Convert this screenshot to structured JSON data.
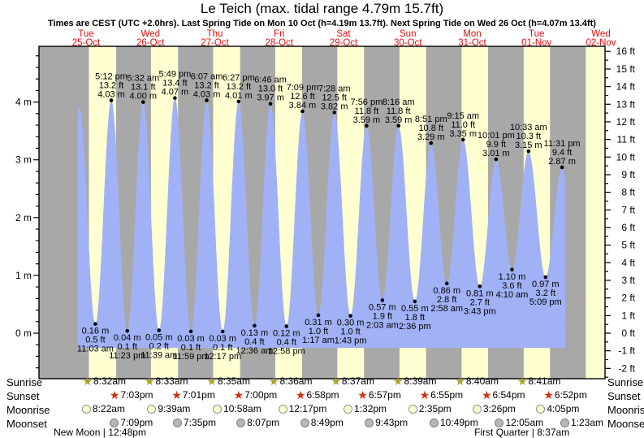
{
  "title": "Le Teich (max. tidal range 4.79m 15.7ft)",
  "subtitle": "Times are CEST (UTC +2.0hrs). Last Spring Tide on Mon 10 Oct (h=4.19m 13.7ft). Next Spring Tide on Wed 26 Oct (h=4.07m 13.4ft)",
  "colors": {
    "night_band": "#a8a8a8",
    "day_band": "#ffffd2",
    "tide_fill": "#a0b1f6",
    "day_label_red": "#dd1111",
    "sunrise_star": "#a8a022",
    "sunset_star": "#d03010",
    "moonrise_fill": "#ffffd2",
    "moonrise_stroke": "#909090",
    "moonset_fill": "#b8b8b0",
    "moonset_stroke": "#808080"
  },
  "days": [
    {
      "dow": "Tue",
      "date": "25-Oct",
      "sunrise_t": 8.533,
      "sunset_t": 19.05
    },
    {
      "dow": "Wed",
      "date": "26-Oct",
      "sunrise_t": 32.55,
      "sunset_t": 43.017
    },
    {
      "dow": "Thu",
      "date": "27-Oct",
      "sunrise_t": 56.583,
      "sunset_t": 67.0
    },
    {
      "dow": "Fri",
      "date": "28-Oct",
      "sunrise_t": 80.6,
      "sunset_t": 90.967
    },
    {
      "dow": "Sat",
      "date": "29-Oct",
      "sunrise_t": 104.617,
      "sunset_t": 114.95
    },
    {
      "dow": "Sun",
      "date": "30-Oct",
      "sunrise_t": 128.65,
      "sunset_t": 138.917
    },
    {
      "dow": "Mon",
      "date": "31-Oct",
      "sunrise_t": 152.667,
      "sunset_t": 162.9
    },
    {
      "dow": "Tue",
      "date": "01-Nov",
      "sunrise_t": 176.683,
      "sunset_t": 186.867
    },
    {
      "dow": "Wed",
      "date": "02-Nov",
      "sunrise_t": 200.72,
      "sunset_t": 210.85
    }
  ],
  "chart_data": {
    "type": "area",
    "title": "Tide height curve",
    "left_axis": {
      "unit": "m",
      "ticks": [
        0,
        1,
        2,
        3,
        4
      ],
      "range": [
        -0.79,
        4.96
      ]
    },
    "right_axis": {
      "unit": "ft",
      "ticks": [
        -2,
        -1,
        0,
        1,
        2,
        3,
        4,
        5,
        6,
        7,
        8,
        9,
        10,
        11,
        12,
        13,
        14,
        15,
        16
      ]
    },
    "time_axis_hours": {
      "curve_start": 4.2,
      "curve_end": 192.8
    },
    "extremes": [
      {
        "kind": "low",
        "t": -1.3,
        "m": 0.16,
        "labeled": false
      },
      {
        "kind": "high",
        "t": 4.83,
        "m": 3.9,
        "labeled": false
      },
      {
        "kind": "low",
        "t": 11.05,
        "m": 0.16,
        "labeled": true,
        "m_label": "0.16 m",
        "ft_label": "0.5 ft",
        "time": "11:03 am"
      },
      {
        "kind": "high",
        "t": 17.2,
        "m": 4.03,
        "labeled": true,
        "m_label": "4.03 m",
        "ft_label": "13.2 ft",
        "time": "5:12 pm"
      },
      {
        "kind": "low",
        "t": 23.383,
        "m": 0.04,
        "labeled": true,
        "m_label": "0.04 m",
        "ft_label": "0.1 ft",
        "time": "11:23 pm"
      },
      {
        "kind": "high",
        "t": 29.533,
        "m": 4.0,
        "labeled": true,
        "m_label": "4.00 m",
        "ft_label": "13.1 ft",
        "time": "5:32 am"
      },
      {
        "kind": "low",
        "t": 35.65,
        "m": 0.05,
        "labeled": true,
        "m_label": "0.05 m",
        "ft_label": "0.2 ft",
        "time": "11:39 am"
      },
      {
        "kind": "high",
        "t": 41.817,
        "m": 4.07,
        "labeled": true,
        "m_label": "4.07 m",
        "ft_label": "13.4 ft",
        "time": "5:49 pm"
      },
      {
        "kind": "low",
        "t": 47.983,
        "m": 0.03,
        "labeled": true,
        "m_label": "0.03 m",
        "ft_label": "0.1 ft",
        "time": "11:59 pm"
      },
      {
        "kind": "high",
        "t": 54.117,
        "m": 4.03,
        "labeled": true,
        "m_label": "4.03 m",
        "ft_label": "13.2 ft",
        "time": "6:07 am"
      },
      {
        "kind": "low",
        "t": 60.283,
        "m": 0.03,
        "labeled": true,
        "m_label": "0.03 m",
        "ft_label": "0.1 ft",
        "time": "12:17 pm"
      },
      {
        "kind": "high",
        "t": 66.45,
        "m": 4.01,
        "labeled": true,
        "m_label": "4.01 m",
        "ft_label": "13.2 ft",
        "time": "6:27 pm"
      },
      {
        "kind": "low",
        "t": 72.6,
        "m": 0.13,
        "labeled": true,
        "m_label": "0.13 m",
        "ft_label": "0.4 ft",
        "time": "12:36 am"
      },
      {
        "kind": "high",
        "t": 78.767,
        "m": 3.97,
        "labeled": true,
        "m_label": "3.97 m",
        "ft_label": "13.0 ft",
        "time": "6:46 am"
      },
      {
        "kind": "low",
        "t": 84.967,
        "m": 0.12,
        "labeled": true,
        "m_label": "0.12 m",
        "ft_label": "0.4 ft",
        "time": "12:58 pm"
      },
      {
        "kind": "high",
        "t": 91.15,
        "m": 3.84,
        "labeled": true,
        "m_label": "3.84 m",
        "ft_label": "12.6 ft",
        "time": "7:09 pm"
      },
      {
        "kind": "low",
        "t": 97.283,
        "m": 0.31,
        "labeled": true,
        "m_label": "0.31 m",
        "ft_label": "1.0 ft",
        "time": "1:17 am"
      },
      {
        "kind": "high",
        "t": 103.467,
        "m": 3.82,
        "labeled": true,
        "m_label": "3.82 m",
        "ft_label": "12.5 ft",
        "time": "7:28 am"
      },
      {
        "kind": "low",
        "t": 109.717,
        "m": 0.3,
        "labeled": true,
        "m_label": "0.30 m",
        "ft_label": "1.0 ft",
        "time": "1:43 pm"
      },
      {
        "kind": "high",
        "t": 115.933,
        "m": 3.59,
        "labeled": true,
        "m_label": "3.59 m",
        "ft_label": "11.8 ft",
        "time": "7:56 pm"
      },
      {
        "kind": "low",
        "t": 122.05,
        "m": 0.57,
        "labeled": true,
        "m_label": "0.57 m",
        "ft_label": "1.9 ft",
        "time": "2:03 am"
      },
      {
        "kind": "high",
        "t": 128.267,
        "m": 3.59,
        "labeled": true,
        "m_label": "3.59 m",
        "ft_label": "11.8 ft",
        "time": "8:16 am"
      },
      {
        "kind": "low",
        "t": 134.6,
        "m": 0.55,
        "labeled": true,
        "m_label": "0.55 m",
        "ft_label": "1.8 ft",
        "time": "2:36 pm"
      },
      {
        "kind": "high",
        "t": 140.85,
        "m": 3.29,
        "labeled": true,
        "m_label": "3.29 m",
        "ft_label": "10.8 ft",
        "time": "8:51 pm"
      },
      {
        "kind": "low",
        "t": 146.967,
        "m": 0.86,
        "labeled": true,
        "m_label": "0.86 m",
        "ft_label": "2.8 ft",
        "time": "2:58 am"
      },
      {
        "kind": "high",
        "t": 153.25,
        "m": 3.35,
        "labeled": true,
        "m_label": "3.35 m",
        "ft_label": "11.0 ft",
        "time": "9:15 am"
      },
      {
        "kind": "low",
        "t": 159.717,
        "m": 0.81,
        "labeled": true,
        "m_label": "0.81 m",
        "ft_label": "2.7 ft",
        "time": "3:43 pm"
      },
      {
        "kind": "high",
        "t": 166.017,
        "m": 3.01,
        "labeled": true,
        "m_label": "3.01 m",
        "ft_label": "9.9 ft",
        "time": "10:01 pm"
      },
      {
        "kind": "low",
        "t": 172.167,
        "m": 1.1,
        "labeled": true,
        "m_label": "1.10 m",
        "ft_label": "3.6 ft",
        "time": "4:10 am"
      },
      {
        "kind": "high",
        "t": 178.55,
        "m": 3.15,
        "labeled": true,
        "m_label": "3.15 m",
        "ft_label": "10.3 ft",
        "time": "10:33 am"
      },
      {
        "kind": "low",
        "t": 185.15,
        "m": 0.97,
        "labeled": true,
        "m_label": "0.97 m",
        "ft_label": "3.2 ft",
        "time": "5:09 pm"
      },
      {
        "kind": "high",
        "t": 191.517,
        "m": 2.87,
        "labeled": true,
        "m_label": "2.87 m",
        "ft_label": "9.4 ft",
        "time": "11:31 pm"
      },
      {
        "kind": "low",
        "t": 197.8,
        "m": 0.95,
        "labeled": false
      }
    ]
  },
  "sun_moon": {
    "rows": [
      {
        "id": "sunrise",
        "label": "Sunrise",
        "icon": "sunrise-star-icon",
        "entries": [
          {
            "time": "8:32am",
            "t": 8.533
          },
          {
            "time": "8:33am",
            "t": 32.55
          },
          {
            "time": "8:35am",
            "t": 56.583
          },
          {
            "time": "8:36am",
            "t": 80.6
          },
          {
            "time": "8:37am",
            "t": 104.617
          },
          {
            "time": "8:39am",
            "t": 128.65
          },
          {
            "time": "8:40am",
            "t": 152.667
          },
          {
            "time": "8:41am",
            "t": 176.683
          }
        ]
      },
      {
        "id": "sunset",
        "label": "Sunset",
        "icon": "sunset-star-icon",
        "entries": [
          {
            "time": "7:03pm",
            "t": 19.05
          },
          {
            "time": "7:01pm",
            "t": 43.017
          },
          {
            "time": "7:00pm",
            "t": 67.0
          },
          {
            "time": "6:58pm",
            "t": 90.967
          },
          {
            "time": "6:57pm",
            "t": 114.95
          },
          {
            "time": "6:55pm",
            "t": 138.917
          },
          {
            "time": "6:54pm",
            "t": 162.9
          },
          {
            "time": "6:52pm",
            "t": 186.867
          }
        ]
      },
      {
        "id": "moonrise",
        "label": "Moonrise",
        "icon": "moonrise-circle-icon",
        "entries": [
          {
            "time": "8:22am",
            "t": 8.367
          },
          {
            "time": "9:39am",
            "t": 33.65
          },
          {
            "time": "10:58am",
            "t": 58.967
          },
          {
            "time": "12:17pm",
            "t": 84.283
          },
          {
            "time": "1:32pm",
            "t": 109.533
          },
          {
            "time": "2:35pm",
            "t": 134.583
          },
          {
            "time": "3:26pm",
            "t": 159.433
          },
          {
            "time": "4:05pm",
            "t": 184.083
          }
        ]
      },
      {
        "id": "moonset",
        "label": "Moonset",
        "icon": "moonset-circle-icon",
        "entries": [
          {
            "time": "7:09pm",
            "t": 19.15
          },
          {
            "time": "7:35pm",
            "t": 43.583
          },
          {
            "time": "8:07pm",
            "t": 68.117
          },
          {
            "time": "8:49pm",
            "t": 92.817
          },
          {
            "time": "9:43pm",
            "t": 117.717
          },
          {
            "time": "10:49pm",
            "t": 142.817
          },
          {
            "time": "12:05am",
            "t": 168.083
          },
          {
            "time": "1:23am",
            "t": 193.383
          }
        ]
      }
    ],
    "notes": [
      {
        "text": "New Moon | 12:48pm",
        "t": 12.8
      },
      {
        "text": "First Quarter | 8:37am",
        "t": 176.0
      }
    ]
  }
}
